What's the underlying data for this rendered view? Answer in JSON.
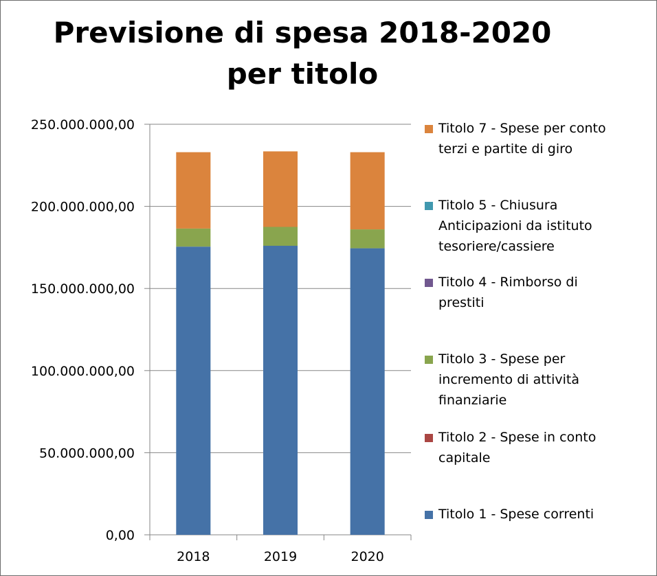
{
  "chart_data": {
    "type": "bar",
    "stacked": true,
    "title": "Previsione di spesa 2018-2020 per titolo",
    "categories": [
      "2018",
      "2019",
      "2020"
    ],
    "ylim": [
      0,
      250000000
    ],
    "yticks": [
      "0,00",
      "50.000.000,00",
      "100.000.000,00",
      "150.000.000,00",
      "200.000.000,00",
      "250.000.000,00"
    ],
    "grid": true,
    "legend_position": "right",
    "series": [
      {
        "name": "Titolo 1 - Spese correnti",
        "color": "#4572A7",
        "values": [
          175500000,
          176000000,
          174500000
        ]
      },
      {
        "name": "Titolo 2 - Spese in conto capitale",
        "color": "#AA4643",
        "values": [
          0,
          0,
          0
        ]
      },
      {
        "name": "Titolo 3 - Spese per incremento di attività finanziarie",
        "color": "#89A54E",
        "values": [
          11000000,
          11500000,
          11500000
        ]
      },
      {
        "name": "Titolo 4 - Rimborso di prestiti",
        "color": "#71588F",
        "values": [
          0,
          0,
          0
        ]
      },
      {
        "name": "Titolo 5 - Chiusura Anticipazioni da istituto tesoriere/cassiere",
        "color": "#4198AF",
        "values": [
          0,
          0,
          0
        ]
      },
      {
        "name": "Titolo 7 - Spese per conto terzi e partite di giro",
        "color": "#DB843D",
        "values": [
          46500000,
          46000000,
          47000000
        ]
      }
    ]
  },
  "legend": {
    "items": [
      {
        "text": "Titolo 7 - Spese per conto\nterzi e partite di giro",
        "color": "#DB843D"
      },
      {
        "text": "Titolo 5 - Chiusura\nAnticipazioni da istituto\ntesoriere/cassiere",
        "color": "#4198AF"
      },
      {
        "text": "Titolo 4 - Rimborso di\nprestiti",
        "color": "#71588F"
      },
      {
        "text": "Titolo 3 - Spese per\nincremento di attività\nfinanziarie",
        "color": "#89A54E"
      },
      {
        "text": "Titolo 2 - Spese in conto\ncapitale",
        "color": "#AA4643"
      },
      {
        "text": "Titolo 1 - Spese correnti",
        "color": "#4572A7"
      }
    ]
  }
}
